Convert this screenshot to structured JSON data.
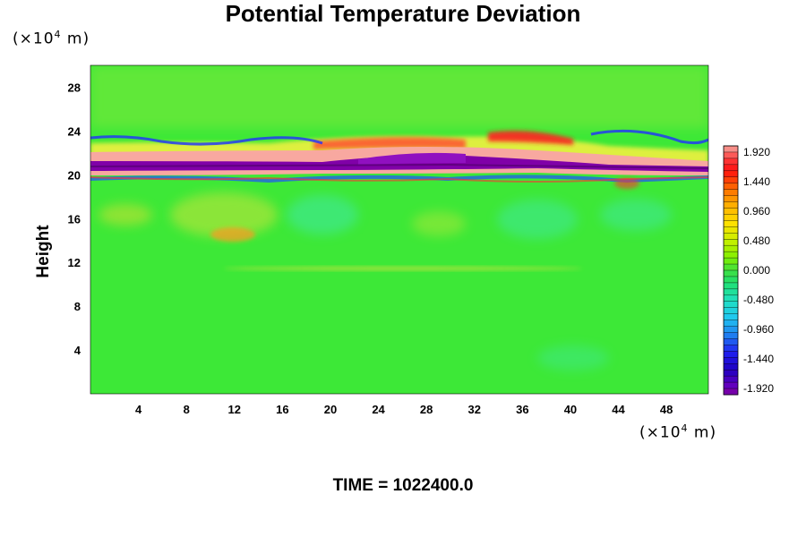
{
  "chart_data": {
    "type": "heatmap",
    "title": "Potential Temperature Deviation",
    "ylabel": "Height",
    "y_unit_prefix": "(×10",
    "y_unit_exp": "4",
    "y_unit_suffix": " m)",
    "x_unit_prefix": "(×10",
    "x_unit_exp": "4",
    "x_unit_suffix": " m)",
    "xlim": [
      0,
      51.5
    ],
    "ylim": [
      0,
      30
    ],
    "x_ticks": [
      "4",
      "8",
      "12",
      "16",
      "20",
      "24",
      "28",
      "32",
      "36",
      "40",
      "44",
      "48"
    ],
    "y_ticks": [
      "4",
      "8",
      "12",
      "16",
      "20",
      "24",
      "28"
    ],
    "colorbar": {
      "min": -1.92,
      "max": 1.92,
      "labels": [
        "1.920",
        "1.440",
        "0.960",
        "0.480",
        "0.000",
        "-0.480",
        "-0.960",
        "-1.440",
        "-1.920"
      ]
    },
    "footer": "TIME = 1022400.0"
  }
}
